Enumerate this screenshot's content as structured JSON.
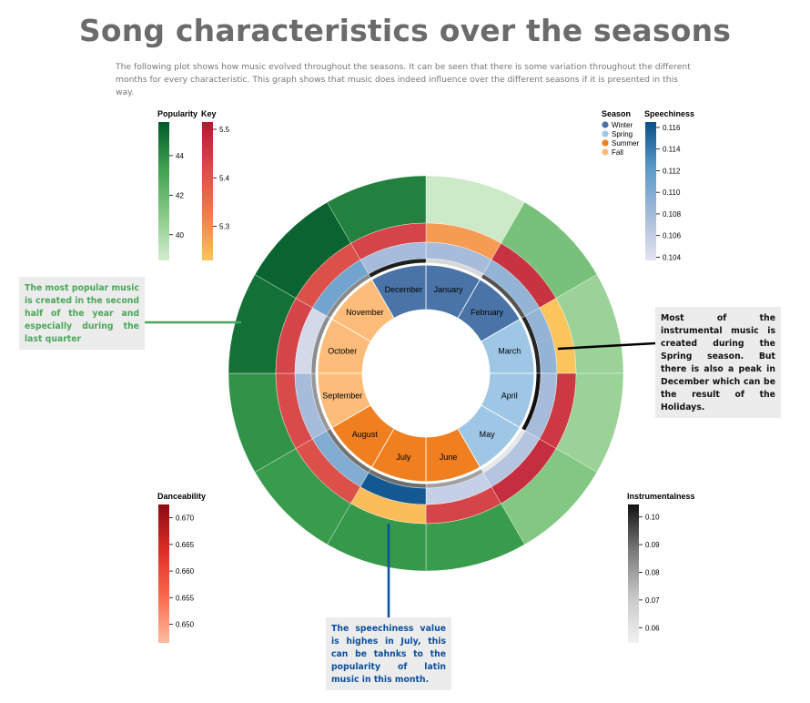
{
  "page": {
    "title": "Song characteristics over the seasons",
    "subtitle": "The following plot shows how music evolved throughout the seasons. It can be seen that there is some variation throughout the different months for every characteristic. This graph shows that music does indeed influence over the different seasons if it is presented in this way."
  },
  "annotations": {
    "popular": "The most popular music is created in the second half of the year and especially during the last quarter",
    "instrumental": "Most of the instrumental music is created during the Spring season. But there is also a peak in December which can be the result of the Holidays.",
    "speechiness": "The speechiness value is highes in July, this can be tahnks to the popularity of latin music in this month."
  },
  "chart_data": {
    "type": "radial-heatmap",
    "months": [
      "January",
      "February",
      "March",
      "April",
      "May",
      "June",
      "July",
      "August",
      "September",
      "October",
      "November",
      "December"
    ],
    "season_of_month": [
      "Winter",
      "Winter",
      "Spring",
      "Spring",
      "Spring",
      "Summer",
      "Summer",
      "Summer",
      "Fall",
      "Fall",
      "Fall",
      "Winter"
    ],
    "seasons": [
      {
        "name": "Winter",
        "color": "#4a74a8"
      },
      {
        "name": "Spring",
        "color": "#9ec7e6"
      },
      {
        "name": "Summer",
        "color": "#f07f1f"
      },
      {
        "name": "Fall",
        "color": "#fdbc7a"
      }
    ],
    "rings_outer_to_inner": [
      "Popularity",
      "Key",
      "Speechiness",
      "Instrumentalness",
      "Danceability"
    ],
    "series": [
      {
        "name": "Popularity",
        "range": [
          39,
          45.5
        ],
        "values": [
          39.2,
          41.6,
          40.6,
          40.6,
          41.3,
          43.5,
          43.6,
          43.5,
          43.8,
          44.8,
          45.2,
          44.3
        ]
      },
      {
        "name": "Key",
        "range": [
          5.25,
          5.52
        ],
        "values": [
          5.3,
          5.47,
          5.25,
          5.46,
          5.48,
          5.44,
          5.26,
          5.42,
          5.43,
          5.44,
          5.42,
          5.44
        ]
      },
      {
        "name": "Speechiness",
        "range": [
          0.104,
          0.1165
        ],
        "values": [
          0.108,
          0.109,
          0.109,
          0.108,
          0.107,
          0.106,
          0.116,
          0.11,
          0.108,
          0.105,
          0.111,
          0.108
        ]
      },
      {
        "name": "Instrumentalness",
        "range": [
          0.056,
          0.104
        ],
        "values": [
          0.066,
          0.094,
          0.101,
          0.104,
          0.06,
          0.08,
          0.09,
          0.089,
          0.082,
          0.084,
          0.085,
          0.102
        ]
      },
      {
        "name": "Danceability",
        "range": [
          0.6475,
          0.6725
        ],
        "values": [
          0.655,
          0.658,
          0.655,
          0.6515,
          0.6545,
          0.665,
          0.666,
          0.664,
          0.6535,
          0.6545,
          0.666,
          0.668
        ]
      }
    ],
    "legends": {
      "popularity": {
        "title": "Popularity",
        "ticks": [
          "44",
          "42",
          "40"
        ],
        "tick_values": [
          44,
          42,
          40
        ]
      },
      "key": {
        "title": "Key",
        "ticks": [
          "5.5",
          "5.4",
          "5.3"
        ],
        "tick_values": [
          5.5,
          5.4,
          5.3
        ]
      },
      "season": {
        "title": "Season"
      },
      "speechiness": {
        "title": "Speechiness",
        "ticks": [
          "0.116",
          "0.114",
          "0.112",
          "0.110",
          "0.108",
          "0.106",
          "0.104"
        ],
        "tick_values": [
          0.116,
          0.114,
          0.112,
          0.11,
          0.108,
          0.106,
          0.104
        ]
      },
      "danceability": {
        "title": "Danceability",
        "ticks": [
          "0.670",
          "0.665",
          "0.660",
          "0.655",
          "0.650"
        ],
        "tick_values": [
          0.67,
          0.665,
          0.66,
          0.655,
          0.65
        ]
      },
      "instrumentalness": {
        "title": "Instrumentalness",
        "ticks": [
          "0.10",
          "0.09",
          "0.08",
          "0.07",
          "0.06"
        ],
        "tick_values": [
          0.1,
          0.09,
          0.08,
          0.07,
          0.06
        ]
      }
    },
    "colors": {
      "popularity": [
        "#d3eccf",
        "#86c985",
        "#3ea150",
        "#005a2a"
      ],
      "key": [
        "#fcc55c",
        "#f07c4a",
        "#d94a4a",
        "#b31735"
      ],
      "speechiness": [
        "#e4e3f0",
        "#a3bad9",
        "#5a9ac9",
        "#0a4f8a"
      ],
      "instrumentalness": [
        "#f2f2f2",
        "#c8c8c8",
        "#7a7a7a",
        "#111111"
      ],
      "danceability": [
        "#fcbba1",
        "#fb6a4a",
        "#de2d26",
        "#8c0b14"
      ],
      "annotation_popular": "#4aa65a",
      "annotation_speech": "#0b4f9e"
    }
  }
}
